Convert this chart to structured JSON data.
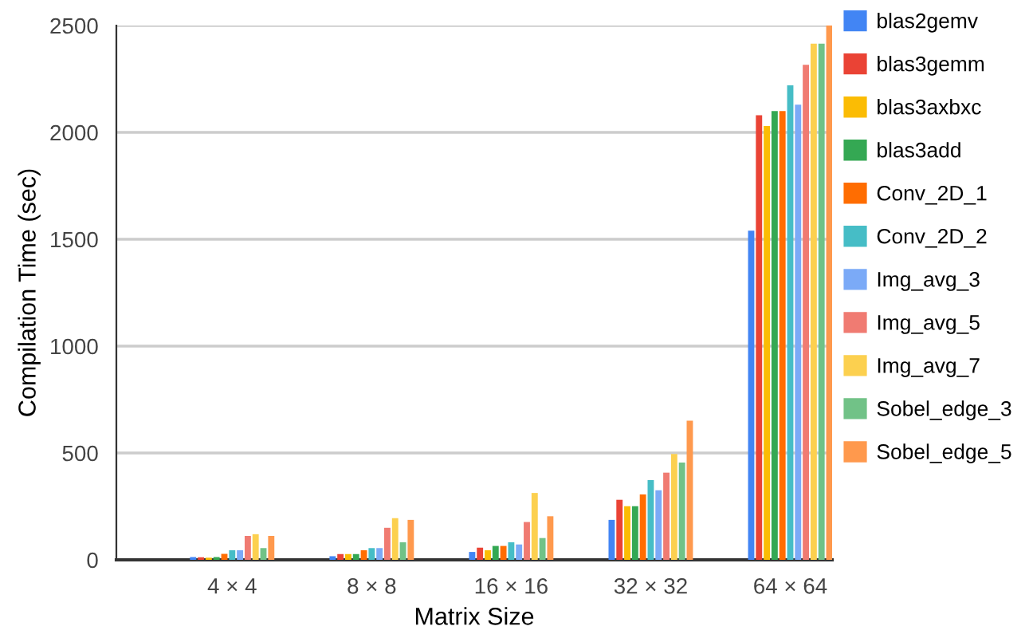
{
  "chart_data": {
    "type": "bar",
    "xlabel": "Matrix Size",
    "ylabel": "Compilation Time (sec)",
    "categories": [
      "4 × 4",
      "8 × 8",
      "16 × 16",
      "32 × 32",
      "64 × 64"
    ],
    "series": [
      {
        "name": "blas2gemv",
        "color": "#4285f4",
        "values": [
          13,
          17,
          37,
          187,
          1540
        ]
      },
      {
        "name": "blas3gemm",
        "color": "#ea4335",
        "values": [
          12,
          27,
          57,
          281,
          2080
        ]
      },
      {
        "name": "blas3axbxc",
        "color": "#fbbc04",
        "values": [
          10,
          27,
          45,
          251,
          2030
        ]
      },
      {
        "name": "blas3add",
        "color": "#34a853",
        "values": [
          13,
          27,
          65,
          251,
          2100
        ]
      },
      {
        "name": "Conv_2D_1",
        "color": "#ff6d01",
        "values": [
          28,
          45,
          65,
          306,
          2100
        ]
      },
      {
        "name": "Conv_2D_2",
        "color": "#46bdc6",
        "values": [
          45,
          55,
          82,
          373,
          2220
        ]
      },
      {
        "name": "Img_avg_3",
        "color": "#7baaf7",
        "values": [
          45,
          55,
          72,
          326,
          2130
        ]
      },
      {
        "name": "Img_avg_5",
        "color": "#f07b72",
        "values": [
          112,
          150,
          177,
          408,
          2316
        ]
      },
      {
        "name": "Img_avg_7",
        "color": "#fcd04f",
        "values": [
          120,
          195,
          313,
          495,
          2415
        ]
      },
      {
        "name": "Sobel_edge_3",
        "color": "#71c287",
        "values": [
          55,
          82,
          102,
          455,
          2415
        ]
      },
      {
        "name": "Sobel_edge_5",
        "color": "#ff994d",
        "values": [
          112,
          187,
          204,
          651,
          2500
        ]
      }
    ],
    "ylim": [
      0,
      2500
    ],
    "yticks": [
      0,
      500,
      1000,
      1500,
      2000,
      2500
    ],
    "grid": "y",
    "legend": "right"
  }
}
